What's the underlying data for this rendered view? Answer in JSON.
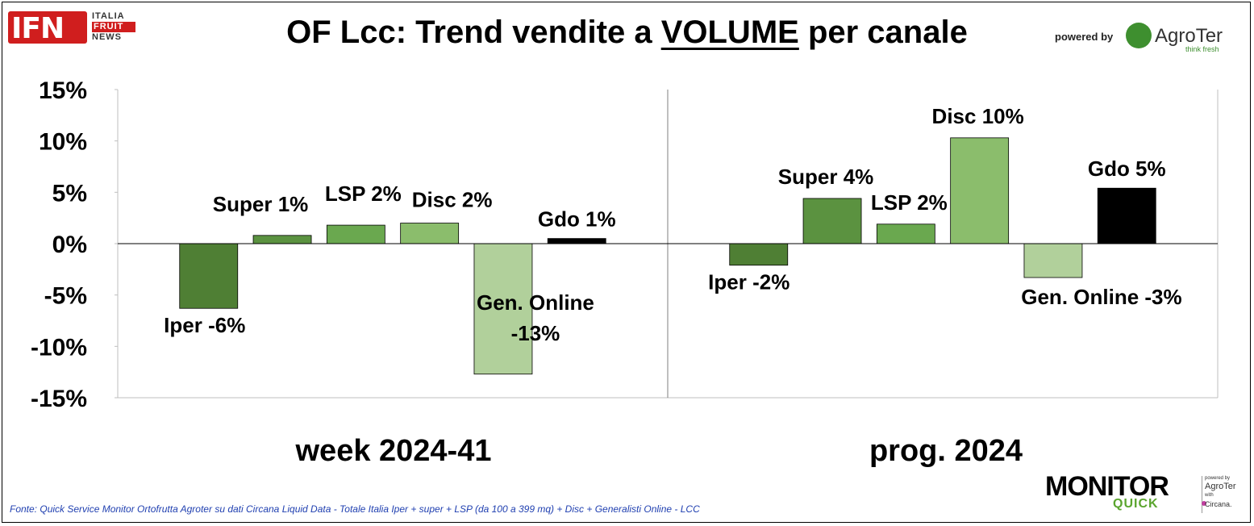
{
  "header": {
    "title_pre": "OF Lcc: Trend vendite a ",
    "title_emph": "VOLUME",
    "title_post": " per canale"
  },
  "logo_ifn": {
    "mark": "IFN",
    "line1": "ITALIA",
    "line2": "FRUIT",
    "line3": "NEWS"
  },
  "logo_agroter": {
    "powered": "powered by",
    "name": "AgroTer",
    "tagline": "think fresh"
  },
  "logo_monitor": {
    "name": "MONITOR",
    "sub": "QUICK",
    "p1": "powered by",
    "p2": "AgroTer",
    "p3": "with",
    "p4": "Circana."
  },
  "footer": {
    "source": "Fonte: Quick Service Monitor Ortofrutta Agroter su dati Circana Liquid Data - Totale Italia Iper + super + LSP (da 100 a 399 mq) + Disc + Generalisti Online - LCC"
  },
  "chart_data": {
    "type": "bar",
    "ylim": [
      -15,
      15
    ],
    "yticks": [
      15,
      10,
      5,
      0,
      -5,
      -10,
      -15
    ],
    "ytick_labels": [
      "15%",
      "10%",
      "5%",
      "0%",
      "-5%",
      "-10%",
      "-15%"
    ],
    "groups": [
      {
        "label": "week 2024-41",
        "bars": [
          {
            "category": "Iper",
            "value": -6.3,
            "label": "Iper -6%"
          },
          {
            "category": "Super",
            "value": 0.8,
            "label": "Super 1%"
          },
          {
            "category": "LSP",
            "value": 1.8,
            "label": "LSP 2%"
          },
          {
            "category": "Disc",
            "value": 2.0,
            "label": "Disc 2%"
          },
          {
            "category": "Gen. Online",
            "value": -12.7,
            "label": "Gen. Online -13%"
          },
          {
            "category": "Gdo",
            "value": 0.5,
            "label": "Gdo 1%"
          }
        ]
      },
      {
        "label": "prog. 2024",
        "bars": [
          {
            "category": "Iper",
            "value": -2.1,
            "label": "Iper -2%"
          },
          {
            "category": "Super",
            "value": 4.4,
            "label": "Super 4%"
          },
          {
            "category": "LSP",
            "value": 1.9,
            "label": "LSP 2%"
          },
          {
            "category": "Disc",
            "value": 10.3,
            "label": "Disc 10%"
          },
          {
            "category": "Gen. Online",
            "value": -3.3,
            "label": "Gen. Online -3%"
          },
          {
            "category": "Gdo",
            "value": 5.4,
            "label": "Gdo 5%"
          }
        ]
      }
    ],
    "colors": {
      "Iper": "#4f7f34",
      "Super": "#5b9240",
      "LSP": "#6aa84f",
      "Disc": "#8bbd6c",
      "Gen. Online": "#b1d09b",
      "Gdo": "#000000"
    },
    "grid": false,
    "legend": "none"
  }
}
